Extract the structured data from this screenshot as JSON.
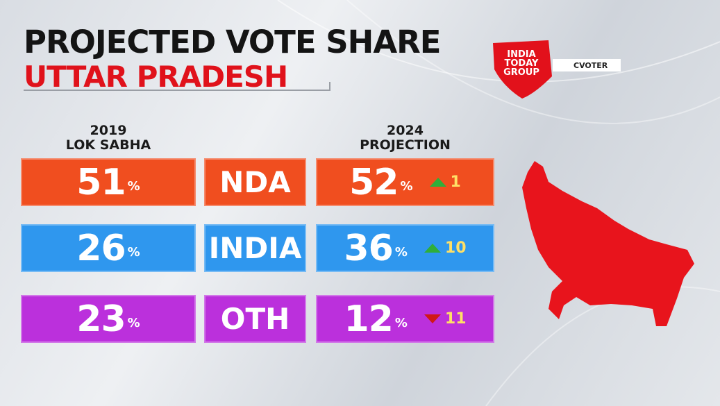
{
  "header": {
    "title": "PROJECTED VOTE SHARE",
    "state": "UTTAR PRADESH",
    "logo": [
      "INDIA",
      "TODAY",
      "GROUP"
    ],
    "partner": "CVOTER"
  },
  "table": {
    "headers": [
      [
        "2019",
        "LOK SABHA"
      ],
      [
        "2024",
        "PROJECTION"
      ]
    ],
    "unit": "%",
    "rows": [
      {
        "party": "NDA",
        "vote_2019": "51",
        "vote_2024": "52",
        "change": "1",
        "trend": "up",
        "color": "#f04e1f"
      },
      {
        "party": "INDIA",
        "vote_2019": "26",
        "vote_2024": "36",
        "change": "10",
        "trend": "up",
        "color": "#2f97ee"
      },
      {
        "party": "OTH",
        "vote_2019": "23",
        "vote_2024": "12",
        "change": "11",
        "trend": "down",
        "color": "#bb30dc"
      }
    ]
  }
}
